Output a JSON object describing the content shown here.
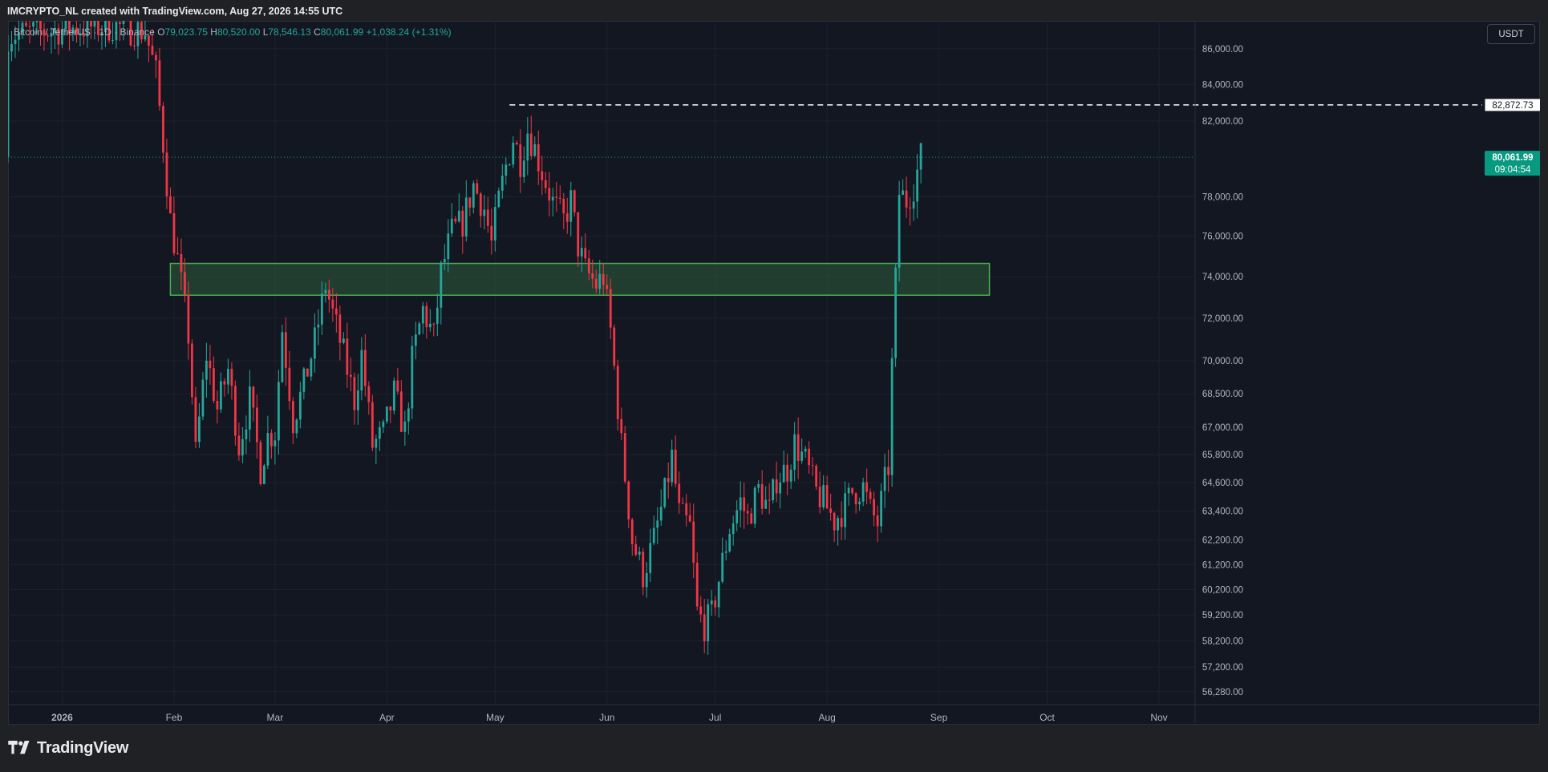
{
  "header": {
    "text": "IMCRYPTO_NL created with TradingView.com, Aug 27, 2026 14:55 UTC"
  },
  "legend": {
    "symbol": "Bitcoin / TetherUS · 1D · Binance",
    "o_label": "O",
    "o_value": "79,023.75",
    "h_label": "H",
    "h_value": "80,520.00",
    "l_label": "L",
    "l_value": "78,546.13",
    "c_label": "C",
    "c_value": "80,061.99",
    "change": "+1,038.24 (+1.31%)"
  },
  "currency_button": "USDT",
  "footer": {
    "brand": "TradingView"
  },
  "colors": {
    "up": "#26a69a",
    "down": "#f23645",
    "zone_fill": "#2e5d3a",
    "zone_stroke": "#4caf50",
    "price_label": "#089981"
  },
  "chart_data": {
    "type": "candlestick",
    "symbol": "BTCUSDT",
    "interval": "1D",
    "exchange": "Binance",
    "y_axis": {
      "scale": "log",
      "ticks": [
        "86,000.00",
        "84,000.00",
        "82,000.00",
        "78,000.00",
        "76,000.00",
        "74,000.00",
        "72,000.00",
        "70,000.00",
        "68,500.00",
        "67,000.00",
        "65,800.00",
        "64,600.00",
        "63,400.00",
        "62,200.00",
        "61,200.00",
        "60,200.00",
        "59,200.00",
        "58,200.00",
        "57,200.00",
        "56,280.00"
      ],
      "range": [
        55800,
        87600
      ]
    },
    "x_axis": {
      "ticks": [
        {
          "label": "2026",
          "date": "2026-01-01"
        },
        {
          "label": "Feb",
          "date": "2026-02-01"
        },
        {
          "label": "Mar",
          "date": "2026-03-01"
        },
        {
          "label": "Apr",
          "date": "2026-04-01"
        },
        {
          "label": "May",
          "date": "2026-05-01"
        },
        {
          "label": "Jun",
          "date": "2026-06-01"
        },
        {
          "label": "Jul",
          "date": "2026-07-01"
        },
        {
          "label": "Aug",
          "date": "2026-08-01"
        },
        {
          "label": "Sep",
          "date": "2026-09-01"
        },
        {
          "label": "Oct",
          "date": "2026-10-01"
        },
        {
          "label": "Nov",
          "date": "2026-11-01"
        }
      ],
      "range": [
        "2025-12-17",
        "2026-11-11"
      ]
    },
    "annotations": {
      "resistance_line": {
        "price": 82872.73,
        "label": "82,872.73",
        "from": "2026-05-05"
      },
      "last_price": {
        "price": 80061.99,
        "label": "80,061.99",
        "countdown": "09:04:54"
      },
      "zone": {
        "from": "2026-01-31",
        "to": "2026-09-15",
        "low": 73100,
        "high": 74650
      }
    },
    "grid": true,
    "close_path": [
      [
        "2025-12-17",
        86800
      ],
      [
        "2025-12-27",
        87000
      ],
      [
        "2026-01-05",
        87200
      ],
      [
        "2026-01-15",
        87300
      ],
      [
        "2026-01-24",
        87000
      ],
      [
        "2026-01-27",
        84600
      ],
      [
        "2026-01-29",
        80800
      ],
      [
        "2026-01-31",
        76800
      ],
      [
        "2026-02-02",
        74800
      ],
      [
        "2026-02-05",
        71200
      ],
      [
        "2026-02-07",
        65800
      ],
      [
        "2026-02-10",
        70300
      ],
      [
        "2026-02-13",
        67800
      ],
      [
        "2026-02-16",
        69600
      ],
      [
        "2026-02-19",
        66200
      ],
      [
        "2026-02-22",
        68200
      ],
      [
        "2026-02-25",
        65200
      ],
      [
        "2026-02-27",
        66600
      ],
      [
        "2026-03-01",
        66800
      ],
      [
        "2026-03-03",
        71500
      ],
      [
        "2026-03-06",
        67300
      ],
      [
        "2026-03-09",
        68900
      ],
      [
        "2026-03-12",
        70900
      ],
      [
        "2026-03-15",
        73600
      ],
      [
        "2026-03-17",
        72200
      ],
      [
        "2026-03-20",
        70300
      ],
      [
        "2026-03-23",
        68200
      ],
      [
        "2026-03-25",
        70300
      ],
      [
        "2026-03-28",
        66200
      ],
      [
        "2026-03-31",
        66700
      ],
      [
        "2026-04-03",
        68500
      ],
      [
        "2026-04-06",
        66800
      ],
      [
        "2026-04-08",
        70000
      ],
      [
        "2026-04-11",
        72400
      ],
      [
        "2026-04-14",
        71100
      ],
      [
        "2026-04-16",
        74200
      ],
      [
        "2026-04-19",
        76200
      ],
      [
        "2026-04-22",
        76700
      ],
      [
        "2026-04-25",
        78600
      ],
      [
        "2026-04-28",
        77400
      ],
      [
        "2026-04-30",
        75600
      ],
      [
        "2026-05-02",
        77800
      ],
      [
        "2026-05-04",
        79600
      ],
      [
        "2026-05-06",
        81100
      ],
      [
        "2026-05-08",
        79900
      ],
      [
        "2026-05-10",
        81500
      ],
      [
        "2026-05-12",
        80500
      ],
      [
        "2026-05-14",
        79300
      ],
      [
        "2026-05-17",
        77700
      ],
      [
        "2026-05-20",
        76800
      ],
      [
        "2026-05-22",
        77800
      ],
      [
        "2026-05-24",
        75500
      ],
      [
        "2026-05-26",
        74300
      ],
      [
        "2026-05-29",
        73600
      ],
      [
        "2026-05-31",
        74000
      ],
      [
        "2026-06-02",
        71400
      ],
      [
        "2026-06-05",
        66200
      ],
      [
        "2026-06-08",
        62200
      ],
      [
        "2026-06-11",
        60800
      ],
      [
        "2026-06-14",
        62200
      ],
      [
        "2026-06-17",
        64100
      ],
      [
        "2026-06-19",
        65700
      ],
      [
        "2026-06-21",
        63300
      ],
      [
        "2026-06-24",
        62700
      ],
      [
        "2026-06-26",
        59300
      ],
      [
        "2026-06-28",
        58800
      ],
      [
        "2026-06-30",
        59200
      ],
      [
        "2026-07-02",
        60600
      ],
      [
        "2026-07-05",
        62700
      ],
      [
        "2026-07-08",
        63800
      ],
      [
        "2026-07-10",
        63100
      ],
      [
        "2026-07-13",
        64300
      ],
      [
        "2026-07-16",
        63400
      ],
      [
        "2026-07-18",
        64800
      ],
      [
        "2026-07-21",
        65200
      ],
      [
        "2026-07-23",
        66300
      ],
      [
        "2026-07-26",
        65500
      ],
      [
        "2026-07-29",
        64200
      ],
      [
        "2026-07-31",
        63800
      ],
      [
        "2026-08-03",
        63000
      ],
      [
        "2026-08-06",
        63600
      ],
      [
        "2026-08-08",
        64200
      ],
      [
        "2026-08-11",
        64400
      ],
      [
        "2026-08-13",
        63400
      ],
      [
        "2026-08-15",
        62900
      ],
      [
        "2026-08-17",
        64600
      ],
      [
        "2026-08-18",
        65300
      ],
      [
        "2026-08-19",
        69800
      ],
      [
        "2026-08-20",
        73800
      ],
      [
        "2026-08-21",
        78200
      ],
      [
        "2026-08-23",
        77800
      ],
      [
        "2026-08-25",
        78600
      ],
      [
        "2026-08-27",
        80062
      ]
    ]
  }
}
